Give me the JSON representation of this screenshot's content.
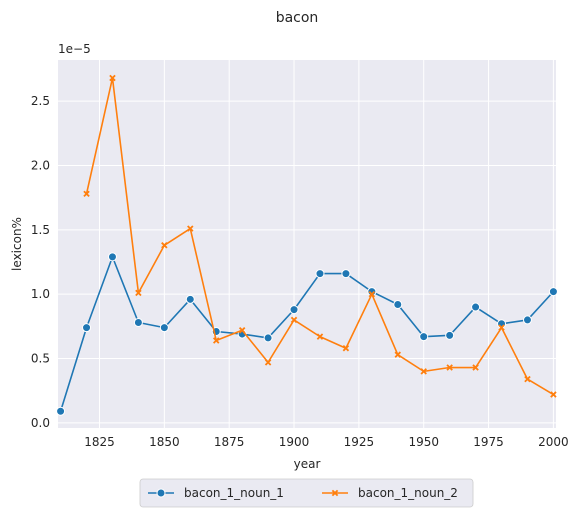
{
  "chart_data": {
    "type": "line",
    "title": "bacon",
    "xlabel": "year",
    "ylabel": "lexicon%",
    "offset_label": "1e−5",
    "x_ticks": [
      "1825",
      "1850",
      "1875",
      "1900",
      "1925",
      "1950",
      "1975",
      "2000"
    ],
    "y_ticks": [
      "0.0",
      "0.5",
      "1.0",
      "1.5",
      "2.0",
      "2.5"
    ],
    "xlim": [
      1809,
      2001
    ],
    "ylim": [
      -0.04,
      2.82
    ],
    "y_scale_note": "values in units of 1e-5",
    "grid": true,
    "legend_position": "bottom-center",
    "series": [
      {
        "name": "bacon_1_noun_1",
        "color": "#1f77b4",
        "marker": "circle",
        "x": [
          1810,
          1820,
          1830,
          1840,
          1850,
          1860,
          1870,
          1880,
          1890,
          1900,
          1910,
          1920,
          1930,
          1940,
          1950,
          1960,
          1970,
          1980,
          1990,
          2000
        ],
        "y": [
          0.09,
          0.74,
          1.29,
          0.78,
          0.74,
          0.96,
          0.71,
          0.69,
          0.66,
          0.88,
          1.16,
          1.16,
          1.02,
          0.92,
          0.67,
          0.68,
          0.9,
          0.77,
          0.8,
          1.02
        ]
      },
      {
        "name": "bacon_1_noun_2",
        "color": "#ff7f0e",
        "marker": "x",
        "x": [
          1820,
          1830,
          1840,
          1850,
          1860,
          1870,
          1880,
          1890,
          1900,
          1910,
          1920,
          1930,
          1940,
          1950,
          1960,
          1970,
          1980,
          1990,
          2000
        ],
        "y": [
          1.78,
          2.68,
          1.01,
          1.38,
          1.51,
          0.64,
          0.72,
          0.47,
          0.8,
          0.67,
          0.58,
          1.0,
          0.53,
          0.4,
          0.43,
          0.43,
          0.74,
          0.34,
          0.22
        ]
      }
    ]
  }
}
